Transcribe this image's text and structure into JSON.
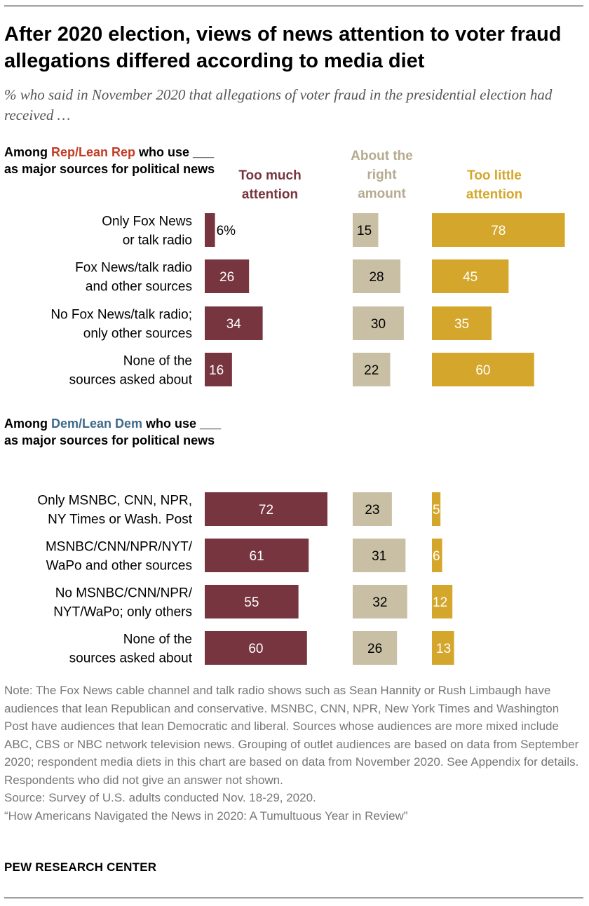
{
  "title": "After 2020 election, views of news attention to voter fraud allegations differed according to media diet",
  "subtitle": "% who said in November 2020 that allegations of voter fraud in the presidential election had received …",
  "groups": {
    "rep": {
      "pre": "Among ",
      "highlight": "Rep/Lean Rep",
      "post": " who use ___ as major sources for political news"
    },
    "dem": {
      "pre": "Among ",
      "highlight": "Dem/Lean Dem",
      "post": " who use ___ as major sources for political news"
    }
  },
  "columns": {
    "too_much": "Too much attention",
    "right": "About the right amount",
    "too_little": "Too little attention"
  },
  "colors": {
    "too_much": "#77363f",
    "right": "#c8bfa4",
    "too_little": "#d4a72c",
    "rep": "#c33a24",
    "dem": "#3f6a8a"
  },
  "chart_data": {
    "type": "bar",
    "series_names": [
      "Too much attention",
      "About the right amount",
      "Too little attention"
    ],
    "rep_rows": [
      {
        "category": "Only Fox News or talk radio",
        "values": [
          6,
          15,
          78
        ],
        "labels": [
          "6%",
          "15",
          "78"
        ]
      },
      {
        "category": "Fox News/talk radio and other sources",
        "values": [
          26,
          28,
          45
        ],
        "labels": [
          "26",
          "28",
          "45"
        ]
      },
      {
        "category": "No Fox News/talk radio; only other sources",
        "values": [
          34,
          30,
          35
        ],
        "labels": [
          "34",
          "30",
          "35"
        ]
      },
      {
        "category": "None of the sources asked about",
        "values": [
          16,
          22,
          60
        ],
        "labels": [
          "16",
          "22",
          "60"
        ]
      }
    ],
    "dem_rows": [
      {
        "category": "Only MSNBC, CNN, NPR, NY Times or Wash. Post",
        "values": [
          72,
          23,
          5
        ],
        "labels": [
          "72",
          "23",
          "5"
        ]
      },
      {
        "category": "MSNBC/CNN/NPR/NYT/ WaPo and other sources",
        "values": [
          61,
          31,
          6
        ],
        "labels": [
          "61",
          "31",
          "6"
        ]
      },
      {
        "category": "No MSNBC/CNN/NPR/ NYT/WaPo; only others",
        "values": [
          55,
          32,
          12
        ],
        "labels": [
          "55",
          "32",
          "12"
        ]
      },
      {
        "category": "None of the sources asked about",
        "values": [
          60,
          26,
          13
        ],
        "labels": [
          "60",
          "26",
          "13"
        ]
      }
    ]
  },
  "notes": {
    "note": "Note: The Fox News cable channel and talk radio shows such as Sean Hannity or Rush Limbaugh have audiences that lean Republican and conservative. MSNBC, CNN, NPR, New York Times and Washington Post have audiences that lean Democratic and liberal. Sources whose audiences are more mixed include ABC, CBS or NBC network television news. Grouping of outlet audiences are based on data from September 2020; respondent media diets in this chart are based on data from November 2020. See Appendix for details. Respondents who did not give an answer not shown.",
    "source": "Source: Survey of U.S. adults conducted Nov. 18-29, 2020.",
    "report": "“How Americans Navigated the News in 2020: A Tumultuous Year in Review”"
  },
  "logo": "PEW RESEARCH CENTER"
}
